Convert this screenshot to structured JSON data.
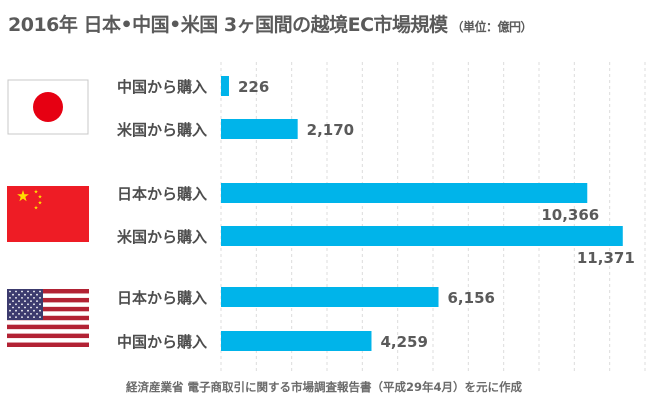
{
  "header": {
    "title": "2016年 日本•中国•米国 3ヶ国間の越境EC市場規模",
    "unit": "（単位：億円）"
  },
  "source": "経済産業省 電子商取引に関する市場調査報告書（平成29年4月）を元に作成",
  "colors": {
    "bar": "#00b4ea",
    "grid": "#dcdcdc",
    "text": "#4d4d4d"
  },
  "flags": [
    "japan-flag",
    "china-flag",
    "usa-flag"
  ],
  "chart_data": {
    "type": "bar",
    "orientation": "horizontal",
    "grid": true,
    "xlim": [
      0,
      12000
    ],
    "groups": [
      {
        "flag": "japan",
        "items": [
          {
            "label": "中国から購入",
            "value": 226,
            "value_label": "226"
          },
          {
            "label": "米国から購入",
            "value": 2170,
            "value_label": "2,170"
          }
        ]
      },
      {
        "flag": "china",
        "items": [
          {
            "label": "日本から購入",
            "value": 10366,
            "value_label": "10,366"
          },
          {
            "label": "米国から購入",
            "value": 11371,
            "value_label": "11,371"
          }
        ]
      },
      {
        "flag": "usa",
        "items": [
          {
            "label": "日本から購入",
            "value": 6156,
            "value_label": "6,156"
          },
          {
            "label": "中国から購入",
            "value": 4259,
            "value_label": "4,259"
          }
        ]
      }
    ]
  }
}
